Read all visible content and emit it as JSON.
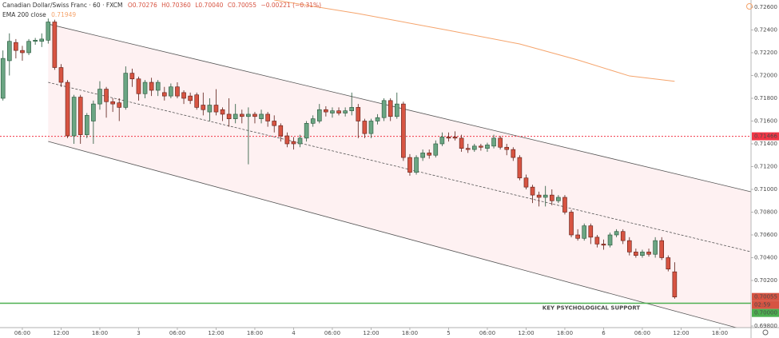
{
  "chart_data": {
    "type": "candlestick",
    "header": {
      "symbol": "Canadian Dollar/Swiss Franc · 60 · FXCM",
      "ohlc": [
        "O0.70276",
        "H0.70360",
        "L0.70040",
        "C0.70055"
      ],
      "change": "−0.00221 (−0.31%)"
    },
    "x": [
      3,
      4,
      5,
      6,
      7,
      8,
      9,
      10,
      11,
      12,
      13,
      14,
      15,
      16,
      17,
      18,
      19,
      20,
      21,
      22,
      23,
      24,
      25,
      26,
      27,
      28,
      29,
      30,
      31,
      32,
      33,
      34,
      35,
      36,
      37,
      38,
      39,
      40,
      41,
      42,
      43,
      44,
      45,
      46,
      47,
      48,
      49,
      50,
      51,
      52,
      53,
      54,
      55,
      56,
      57,
      58,
      59,
      60,
      61,
      62,
      63,
      64,
      65,
      66,
      67,
      68,
      69,
      70,
      71,
      72,
      73,
      74,
      75,
      76,
      77,
      78,
      79,
      80,
      81,
      82,
      83,
      84,
      85,
      86,
      87,
      88,
      89,
      90,
      91,
      92,
      93,
      94,
      95,
      96,
      97,
      98,
      99,
      100,
      101,
      102,
      103,
      104,
      105,
      106,
      107
    ],
    "open": [
      0.718,
      0.7213,
      0.7229,
      0.7222,
      0.722,
      0.723,
      0.723,
      0.7231,
      0.7247,
      0.7207,
      0.7194,
      0.7147,
      0.7181,
      0.7148,
      0.716,
      0.7175,
      0.7188,
      0.7177,
      0.7176,
      0.7172,
      0.7202,
      0.7197,
      0.7184,
      0.7194,
      0.7187,
      0.7185,
      0.7182,
      0.719,
      0.7185,
      0.7182,
      0.7183,
      0.7174,
      0.7168,
      0.7174,
      0.717,
      0.7166,
      0.7162,
      0.7166,
      0.7164,
      0.7166,
      0.7162,
      0.7166,
      0.716,
      0.7156,
      0.7147,
      0.7142,
      0.714,
      0.7145,
      0.7158,
      0.716,
      0.717,
      0.7167,
      0.7169,
      0.7167,
      0.7169,
      0.7172,
      0.716,
      0.7149,
      0.716,
      0.7163,
      0.7178,
      0.7164,
      0.7175,
      0.7128,
      0.7115,
      0.7128,
      0.7132,
      0.713,
      0.714,
      0.7146,
      0.7146,
      0.7145,
      0.7136,
      0.7135,
      0.7138,
      0.7136,
      0.7138,
      0.7145,
      0.7137,
      0.7135,
      0.7128,
      0.711,
      0.7102,
      0.7095,
      0.7093,
      0.7095,
      0.709,
      0.7093,
      0.708,
      0.706,
      0.7057,
      0.7068,
      0.7058,
      0.7052,
      0.7051,
      0.706,
      0.7063,
      0.7055,
      0.7045,
      0.7042,
      0.7045,
      0.7043,
      0.7055,
      0.704,
      0.70276
    ],
    "high": [
      0.7222,
      0.7237,
      0.7232,
      0.7226,
      0.7232,
      0.7233,
      0.7237,
      0.725,
      0.7249,
      0.721,
      0.7196,
      0.7183,
      0.7183,
      0.7167,
      0.7178,
      0.7195,
      0.719,
      0.718,
      0.718,
      0.7208,
      0.7206,
      0.7199,
      0.7196,
      0.7198,
      0.7196,
      0.719,
      0.7193,
      0.7194,
      0.7187,
      0.7185,
      0.7185,
      0.7185,
      0.718,
      0.7188,
      0.7172,
      0.718,
      0.7175,
      0.717,
      0.7172,
      0.7168,
      0.717,
      0.7168,
      0.7165,
      0.7158,
      0.715,
      0.7146,
      0.7148,
      0.716,
      0.7165,
      0.7175,
      0.7173,
      0.7172,
      0.7172,
      0.7172,
      0.7185,
      0.7175,
      0.7162,
      0.7162,
      0.7166,
      0.718,
      0.718,
      0.7185,
      0.7177,
      0.7131,
      0.713,
      0.7135,
      0.7135,
      0.7143,
      0.715,
      0.715,
      0.7151,
      0.7148,
      0.714,
      0.714,
      0.714,
      0.7141,
      0.7148,
      0.7147,
      0.714,
      0.7137,
      0.713,
      0.7113,
      0.7104,
      0.7098,
      0.7103,
      0.71,
      0.7095,
      0.7095,
      0.7082,
      0.7065,
      0.707,
      0.707,
      0.706,
      0.7056,
      0.7062,
      0.7065,
      0.7065,
      0.7058,
      0.7048,
      0.7047,
      0.7048,
      0.7058,
      0.7058,
      0.7042,
      0.7036
    ],
    "low": [
      0.7178,
      0.72,
      0.7215,
      0.7213,
      0.7218,
      0.7227,
      0.7225,
      0.7228,
      0.7205,
      0.719,
      0.7145,
      0.714,
      0.714,
      0.7145,
      0.714,
      0.717,
      0.7163,
      0.7168,
      0.716,
      0.717,
      0.719,
      0.7178,
      0.718,
      0.7182,
      0.7182,
      0.7178,
      0.718,
      0.718,
      0.7175,
      0.7175,
      0.717,
      0.7165,
      0.716,
      0.7165,
      0.716,
      0.7155,
      0.7158,
      0.7158,
      0.7122,
      0.7158,
      0.7158,
      0.7155,
      0.715,
      0.7142,
      0.7137,
      0.7135,
      0.7137,
      0.7142,
      0.7155,
      0.7158,
      0.7164,
      0.7163,
      0.7165,
      0.7164,
      0.7165,
      0.7145,
      0.7145,
      0.7145,
      0.7157,
      0.716,
      0.716,
      0.7162,
      0.7125,
      0.7112,
      0.7113,
      0.7125,
      0.7127,
      0.7128,
      0.7138,
      0.7142,
      0.7143,
      0.7133,
      0.7132,
      0.7133,
      0.7134,
      0.7133,
      0.7136,
      0.7135,
      0.713,
      0.7125,
      0.7108,
      0.71,
      0.7088,
      0.7085,
      0.7085,
      0.7086,
      0.7088,
      0.7078,
      0.7058,
      0.7055,
      0.7055,
      0.7052,
      0.7049,
      0.7047,
      0.7049,
      0.7058,
      0.7052,
      0.7042,
      0.704,
      0.704,
      0.7041,
      0.704,
      0.7038,
      0.7028,
      0.7004
    ],
    "close": [
      0.7215,
      0.723,
      0.7222,
      0.722,
      0.723,
      0.7231,
      0.7232,
      0.7247,
      0.7207,
      0.7194,
      0.7147,
      0.7181,
      0.7148,
      0.7165,
      0.7175,
      0.7188,
      0.7177,
      0.7175,
      0.7172,
      0.7202,
      0.7197,
      0.7184,
      0.7194,
      0.7187,
      0.7194,
      0.7182,
      0.719,
      0.7182,
      0.718,
      0.7178,
      0.7172,
      0.717,
      0.7174,
      0.7168,
      0.7166,
      0.7162,
      0.7166,
      0.7164,
      0.7166,
      0.7164,
      0.7166,
      0.716,
      0.7156,
      0.7147,
      0.714,
      0.714,
      0.7145,
      0.7158,
      0.7162,
      0.717,
      0.7168,
      0.7169,
      0.7167,
      0.7169,
      0.7172,
      0.716,
      0.7149,
      0.716,
      0.7163,
      0.7178,
      0.7164,
      0.7175,
      0.7128,
      0.7115,
      0.7128,
      0.7132,
      0.713,
      0.714,
      0.7146,
      0.7145,
      0.7145,
      0.7136,
      0.7135,
      0.7138,
      0.7137,
      0.7139,
      0.7145,
      0.7137,
      0.7135,
      0.7128,
      0.711,
      0.7102,
      0.7095,
      0.7093,
      0.7095,
      0.709,
      0.7093,
      0.708,
      0.706,
      0.7057,
      0.7068,
      0.7058,
      0.7052,
      0.7051,
      0.706,
      0.7063,
      0.7055,
      0.7045,
      0.7042,
      0.7045,
      0.7043,
      0.7055,
      0.704,
      0.703,
      0.70055
    ],
    "up_color": "#6ba583",
    "down_color": "#d75442",
    "ema": {
      "name": "EMA 200 close",
      "color": "#f5a46c",
      "x": [
        45,
        58,
        72,
        83,
        92,
        100,
        107
      ],
      "values": [
        0.72663,
        0.72544,
        0.72396,
        0.72277,
        0.72137,
        0.71996,
        0.71949
      ]
    },
    "channel": {
      "x": [
        10,
        118.8
      ],
      "upper": [
        0.72452,
        0.70979
      ],
      "middle": [
        0.7194,
        0.70452
      ],
      "lower": [
        0.71421,
        0.69751
      ],
      "color": "#f23645"
    },
    "hline": {
      "value": 0.71466,
      "color": "#f23645"
    },
    "support": {
      "value": 0.7,
      "label": "0.70000",
      "text": "KEY PSYCHOLOGICAL SUPPORT",
      "color": "#4caf50"
    },
    "countdown": "02:59",
    "xlim": [
      2.54,
      118.83
    ],
    "ylim": [
      0.69786,
      0.72663
    ],
    "xticks": [
      {
        "value": 6,
        "label": "06:00"
      },
      {
        "value": 12,
        "label": "12:00"
      },
      {
        "value": 18,
        "label": "18:00"
      },
      {
        "value": 24,
        "label": "3"
      },
      {
        "value": 30,
        "label": "06:00"
      },
      {
        "value": 36,
        "label": "12:00"
      },
      {
        "value": 42,
        "label": "18:00"
      },
      {
        "value": 48,
        "label": "4"
      },
      {
        "value": 54,
        "label": "06:00"
      },
      {
        "value": 60,
        "label": "12:00"
      },
      {
        "value": 66,
        "label": "18:00"
      },
      {
        "value": 72,
        "label": "5"
      },
      {
        "value": 78,
        "label": "06:00"
      },
      {
        "value": 84,
        "label": "12:00"
      },
      {
        "value": 90,
        "label": "18:00"
      },
      {
        "value": 96,
        "label": "6"
      },
      {
        "value": 102,
        "label": "06:00"
      },
      {
        "value": 108,
        "label": "12:00"
      },
      {
        "value": 114,
        "label": "18:00"
      }
    ],
    "yticks": [
      {
        "value": 0.726,
        "label": "0.72600"
      },
      {
        "value": 0.724,
        "label": "0.72400"
      },
      {
        "value": 0.722,
        "label": "0.72200"
      },
      {
        "value": 0.72,
        "label": "0.72000"
      },
      {
        "value": 0.718,
        "label": "0.71800"
      },
      {
        "value": 0.716,
        "label": "0.71600"
      },
      {
        "value": 0.714,
        "label": "0.71400"
      },
      {
        "value": 0.712,
        "label": "0.71200"
      },
      {
        "value": 0.71,
        "label": "0.71000"
      },
      {
        "value": 0.708,
        "label": "0.70800"
      },
      {
        "value": 0.706,
        "label": "0.70600"
      },
      {
        "value": 0.704,
        "label": "0.70400"
      },
      {
        "value": 0.702,
        "label": "0.70200"
      },
      {
        "value": 0.698,
        "label": "0.69800"
      }
    ]
  }
}
